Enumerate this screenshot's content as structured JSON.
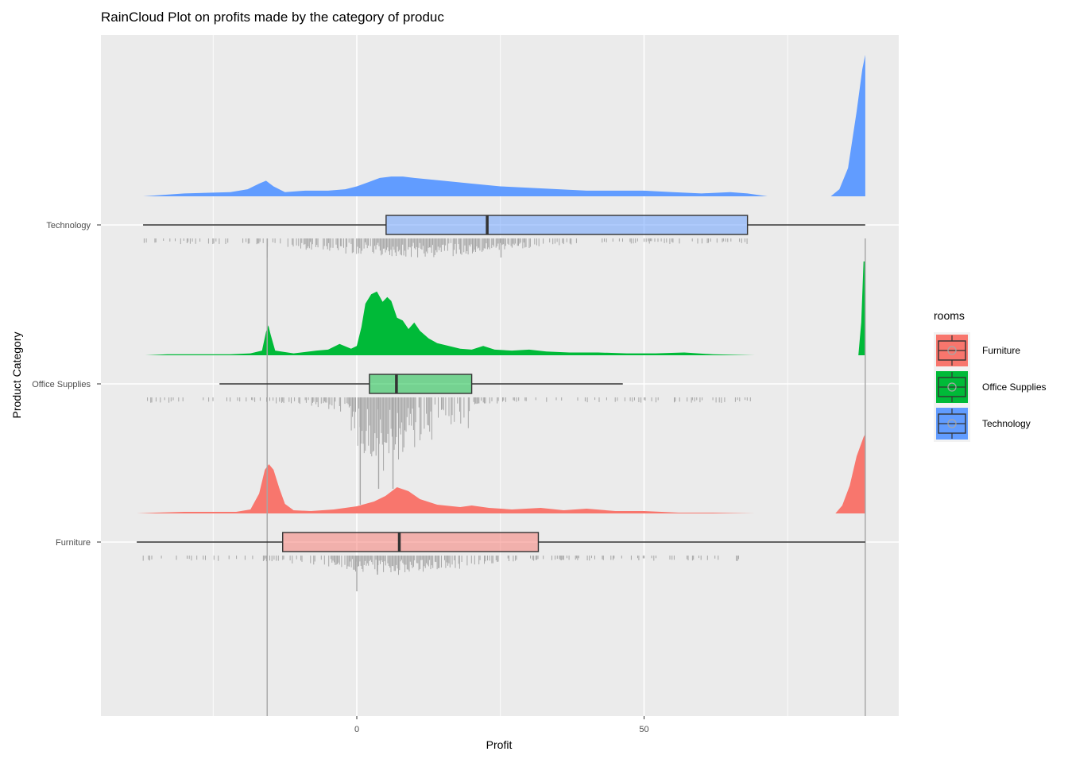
{
  "chart_data": {
    "type": "raincloud",
    "title": "RainCloud Plot on profits made by the category of produc",
    "xlabel": "Profit",
    "ylabel": "Product Category",
    "x_ticks": [
      0,
      50
    ],
    "x_tick_labels": [
      "0",
      "50"
    ],
    "xlim": [
      -45,
      94
    ],
    "grid": true,
    "legend": {
      "title": "rooms",
      "position": "right"
    },
    "categories": [
      "Furniture",
      "Office Supplies",
      "Technology"
    ],
    "colors": {
      "Furniture": "#F8766D",
      "Office Supplies": "#00BA38",
      "Technology": "#619CFF"
    },
    "reference_lines_x": [
      -15.6,
      88.5
    ],
    "series": [
      {
        "name": "Furniture",
        "box": {
          "whisker_low": -38.3,
          "q1": -12.9,
          "median": 7.4,
          "q3": 31.6,
          "whisker_high": 88.5
        },
        "density": [
          [
            -38.3,
            0.0
          ],
          [
            -35,
            0.01
          ],
          [
            -30,
            0.02
          ],
          [
            -25,
            0.02
          ],
          [
            -21,
            0.02
          ],
          [
            -18.5,
            0.05
          ],
          [
            -17,
            0.25
          ],
          [
            -16,
            0.55
          ],
          [
            -15.3,
            0.62
          ],
          [
            -14.5,
            0.55
          ],
          [
            -13.5,
            0.32
          ],
          [
            -12.5,
            0.12
          ],
          [
            -11,
            0.04
          ],
          [
            -8,
            0.03
          ],
          [
            -4,
            0.05
          ],
          [
            0,
            0.09
          ],
          [
            3,
            0.15
          ],
          [
            5,
            0.22
          ],
          [
            7,
            0.33
          ],
          [
            9,
            0.28
          ],
          [
            11,
            0.18
          ],
          [
            14,
            0.11
          ],
          [
            18,
            0.08
          ],
          [
            20,
            0.1
          ],
          [
            23,
            0.07
          ],
          [
            27,
            0.05
          ],
          [
            32,
            0.07
          ],
          [
            36,
            0.04
          ],
          [
            40,
            0.06
          ],
          [
            45,
            0.03
          ],
          [
            50,
            0.03
          ],
          [
            56,
            0.01
          ],
          [
            62,
            0.01
          ],
          [
            69.3,
            0.0
          ],
          [
            83.3,
            0.0
          ],
          [
            84.5,
            0.1
          ],
          [
            85.8,
            0.35
          ],
          [
            87,
            0.72
          ],
          [
            88.2,
            0.96
          ],
          [
            88.5,
            1.0
          ]
        ]
      },
      {
        "name": "Office Supplies",
        "box": {
          "whisker_low": -23.9,
          "q1": 2.2,
          "median": 6.9,
          "q3": 20.0,
          "whisker_high": 46.3
        },
        "density": [
          [
            -36.8,
            0.0
          ],
          [
            -33,
            0.01
          ],
          [
            -28,
            0.01
          ],
          [
            -22,
            0.01
          ],
          [
            -18.5,
            0.02
          ],
          [
            -16.5,
            0.05
          ],
          [
            -15.8,
            0.25
          ],
          [
            -15.4,
            0.32
          ],
          [
            -15,
            0.22
          ],
          [
            -14.2,
            0.05
          ],
          [
            -11,
            0.02
          ],
          [
            -7,
            0.05
          ],
          [
            -5,
            0.06
          ],
          [
            -3,
            0.12
          ],
          [
            -1,
            0.07
          ],
          [
            0,
            0.1
          ],
          [
            0.8,
            0.3
          ],
          [
            1.5,
            0.55
          ],
          [
            2.5,
            0.65
          ],
          [
            3.5,
            0.68
          ],
          [
            4.5,
            0.57
          ],
          [
            5.3,
            0.62
          ],
          [
            6,
            0.58
          ],
          [
            7,
            0.4
          ],
          [
            8,
            0.37
          ],
          [
            9,
            0.28
          ],
          [
            10,
            0.35
          ],
          [
            11,
            0.26
          ],
          [
            12.5,
            0.18
          ],
          [
            14,
            0.13
          ],
          [
            16,
            0.1
          ],
          [
            18,
            0.07
          ],
          [
            20,
            0.06
          ],
          [
            22,
            0.1
          ],
          [
            24,
            0.06
          ],
          [
            27,
            0.05
          ],
          [
            30,
            0.06
          ],
          [
            33,
            0.04
          ],
          [
            37,
            0.03
          ],
          [
            42,
            0.03
          ],
          [
            47,
            0.02
          ],
          [
            52,
            0.02
          ],
          [
            57,
            0.03
          ],
          [
            62,
            0.01
          ],
          [
            69.3,
            0.0
          ],
          [
            87.3,
            0.0
          ],
          [
            87.8,
            0.35
          ],
          [
            88.2,
            1.0
          ],
          [
            88.5,
            1.0
          ]
        ]
      },
      {
        "name": "Technology",
        "box": {
          "whisker_low": -37.2,
          "q1": 5.1,
          "median": 22.7,
          "q3": 68.0,
          "whisker_high": 88.5
        },
        "density": [
          [
            -37.2,
            0.0
          ],
          [
            -30,
            0.02
          ],
          [
            -22,
            0.03
          ],
          [
            -19,
            0.05
          ],
          [
            -17,
            0.09
          ],
          [
            -15.8,
            0.11
          ],
          [
            -14.5,
            0.07
          ],
          [
            -12.5,
            0.03
          ],
          [
            -9,
            0.04
          ],
          [
            -5,
            0.04
          ],
          [
            -2,
            0.05
          ],
          [
            0,
            0.07
          ],
          [
            2,
            0.1
          ],
          [
            4,
            0.13
          ],
          [
            6,
            0.14
          ],
          [
            8,
            0.14
          ],
          [
            10,
            0.13
          ],
          [
            15,
            0.11
          ],
          [
            20,
            0.09
          ],
          [
            25,
            0.07
          ],
          [
            30,
            0.06
          ],
          [
            40,
            0.04
          ],
          [
            50,
            0.04
          ],
          [
            55,
            0.03
          ],
          [
            60,
            0.02
          ],
          [
            65,
            0.03
          ],
          [
            68,
            0.02
          ],
          [
            71.5,
            0.0
          ],
          [
            82.5,
            0.0
          ],
          [
            84,
            0.05
          ],
          [
            85.5,
            0.2
          ],
          [
            87,
            0.6
          ],
          [
            88,
            0.9
          ],
          [
            88.5,
            1.0
          ]
        ]
      }
    ],
    "rain": [
      {
        "name": "Furniture",
        "x_min": -38.3,
        "x_max": 68.5,
        "spike_x": [
          0,
          3.6
        ],
        "dense_center": 7,
        "dense_spread": 10
      },
      {
        "name": "Office Supplies",
        "x_min": -36.8,
        "x_max": 69.3,
        "spike_x": [
          3.8,
          6.3,
          0.6
        ],
        "dense_center": 5,
        "dense_spread": 8
      },
      {
        "name": "Technology",
        "x_min": -37.2,
        "x_max": 68.5,
        "spike_x": [
          25.1,
          -15.6
        ],
        "dense_center": 10,
        "dense_spread": 14
      }
    ]
  }
}
